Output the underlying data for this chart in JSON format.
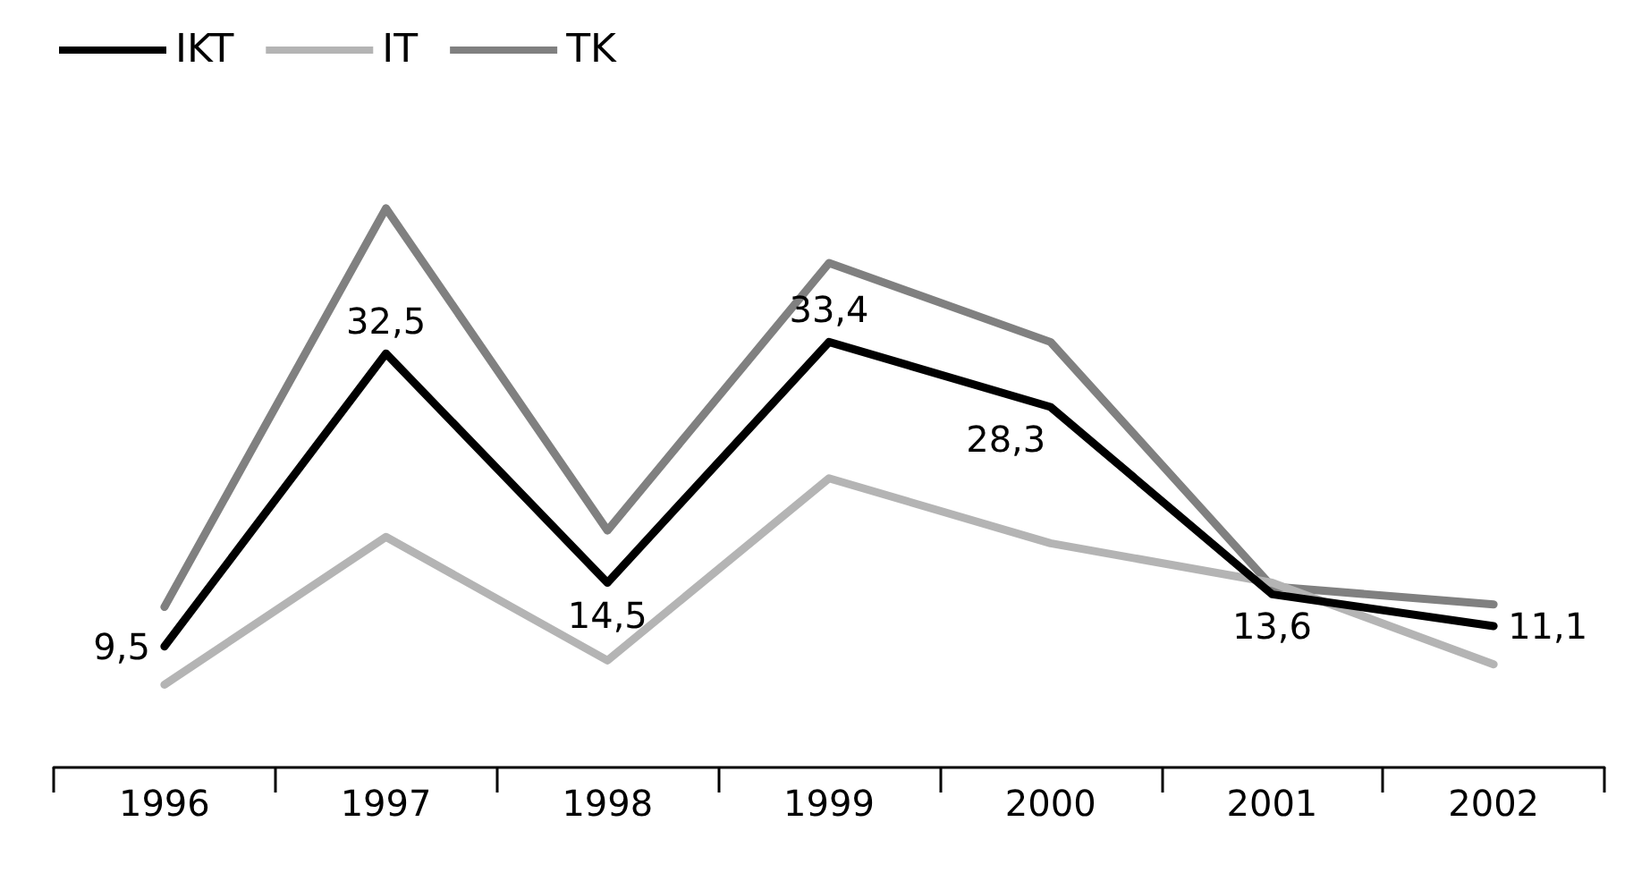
{
  "chart_data": {
    "type": "line",
    "categories": [
      "1996",
      "1997",
      "1998",
      "1999",
      "2000",
      "2001",
      "2002"
    ],
    "series": [
      {
        "name": "IKT",
        "color": "#000000",
        "values": [
          9.5,
          32.5,
          14.5,
          33.4,
          28.3,
          13.6,
          11.1
        ],
        "value_labels": [
          "9,5",
          "32,5",
          "14,5",
          "33,4",
          "28,3",
          "13,6",
          "11,1"
        ]
      },
      {
        "name": "IT",
        "color": "#b4b4b4",
        "values": [
          6.5,
          18.1,
          8.4,
          22.7,
          17.6,
          14.5,
          8.1
        ]
      },
      {
        "name": "TK",
        "color": "#808080",
        "values": [
          12.6,
          43.9,
          18.6,
          39.6,
          33.4,
          14.2,
          12.8
        ]
      }
    ],
    "tick_labels": "x",
    "legend": "top left",
    "grid": false,
    "marker": "none",
    "line_style": "solid"
  }
}
